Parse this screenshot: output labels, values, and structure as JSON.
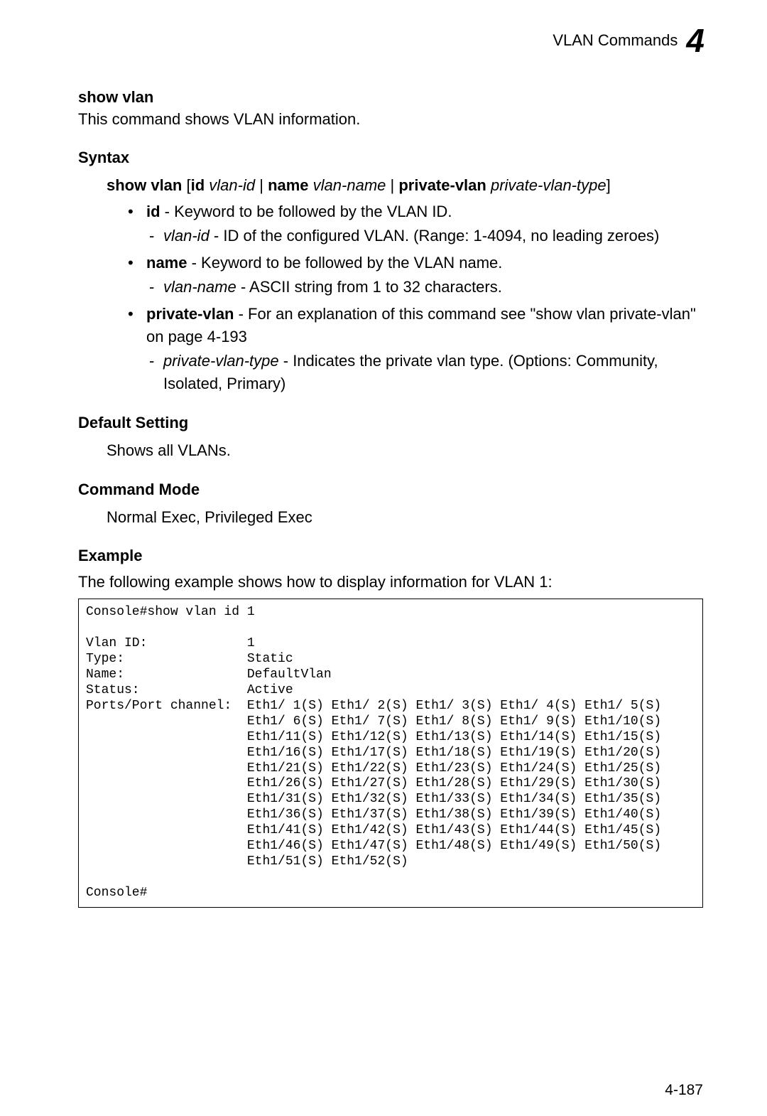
{
  "header": {
    "title": "VLAN Commands",
    "chapter": "4"
  },
  "command": {
    "name": "show vlan",
    "description": "This command shows VLAN information."
  },
  "syntax": {
    "heading": "Syntax",
    "cmd_bold1": "show vlan",
    "cmd_open": "[",
    "cmd_id": "id",
    "cmd_vlanid": "vlan-id",
    "cmd_pipe1": " | ",
    "cmd_name": "name",
    "cmd_vlanname": "vlan-name",
    "cmd_pipe2": " | ",
    "cmd_pvlan": "private-vlan",
    "cmd_pvlantype": "private-vlan-type",
    "cmd_close": "]",
    "items": [
      {
        "kw": "id",
        "text": " - Keyword to be followed by the VLAN ID.",
        "sub_kw_italic": "vlan-id",
        "sub_text": " - ID of the configured VLAN. (Range: 1-4094, no leading zeroes)"
      },
      {
        "kw": "name",
        "text": " - Keyword to be followed by the VLAN name.",
        "sub_kw_italic": "vlan-name",
        "sub_text": " - ASCII string from 1 to 32 characters."
      },
      {
        "kw": "private-vlan",
        "text": " - For an explanation of this command see \"show vlan private-vlan\" on page 4-193",
        "sub_kw_italic": "private-vlan-type",
        "sub_text": " - Indicates the private vlan type. (Options: Community, Isolated, Primary)"
      }
    ]
  },
  "default_setting": {
    "heading": "Default Setting",
    "text": "Shows all VLANs."
  },
  "command_mode": {
    "heading": "Command Mode",
    "text": "Normal Exec, Privileged Exec"
  },
  "example": {
    "heading": "Example",
    "intro": "The following example shows how to display information for VLAN 1:",
    "code": "Console#show vlan id 1\n\nVlan ID:             1\nType:                Static\nName:                DefaultVlan\nStatus:              Active\nPorts/Port channel:  Eth1/ 1(S) Eth1/ 2(S) Eth1/ 3(S) Eth1/ 4(S) Eth1/ 5(S)\n                     Eth1/ 6(S) Eth1/ 7(S) Eth1/ 8(S) Eth1/ 9(S) Eth1/10(S)\n                     Eth1/11(S) Eth1/12(S) Eth1/13(S) Eth1/14(S) Eth1/15(S)\n                     Eth1/16(S) Eth1/17(S) Eth1/18(S) Eth1/19(S) Eth1/20(S)\n                     Eth1/21(S) Eth1/22(S) Eth1/23(S) Eth1/24(S) Eth1/25(S)\n                     Eth1/26(S) Eth1/27(S) Eth1/28(S) Eth1/29(S) Eth1/30(S)\n                     Eth1/31(S) Eth1/32(S) Eth1/33(S) Eth1/34(S) Eth1/35(S)\n                     Eth1/36(S) Eth1/37(S) Eth1/38(S) Eth1/39(S) Eth1/40(S)\n                     Eth1/41(S) Eth1/42(S) Eth1/43(S) Eth1/44(S) Eth1/45(S)\n                     Eth1/46(S) Eth1/47(S) Eth1/48(S) Eth1/49(S) Eth1/50(S)\n                     Eth1/51(S) Eth1/52(S)\n\nConsole#"
  },
  "page_number": "4-187"
}
